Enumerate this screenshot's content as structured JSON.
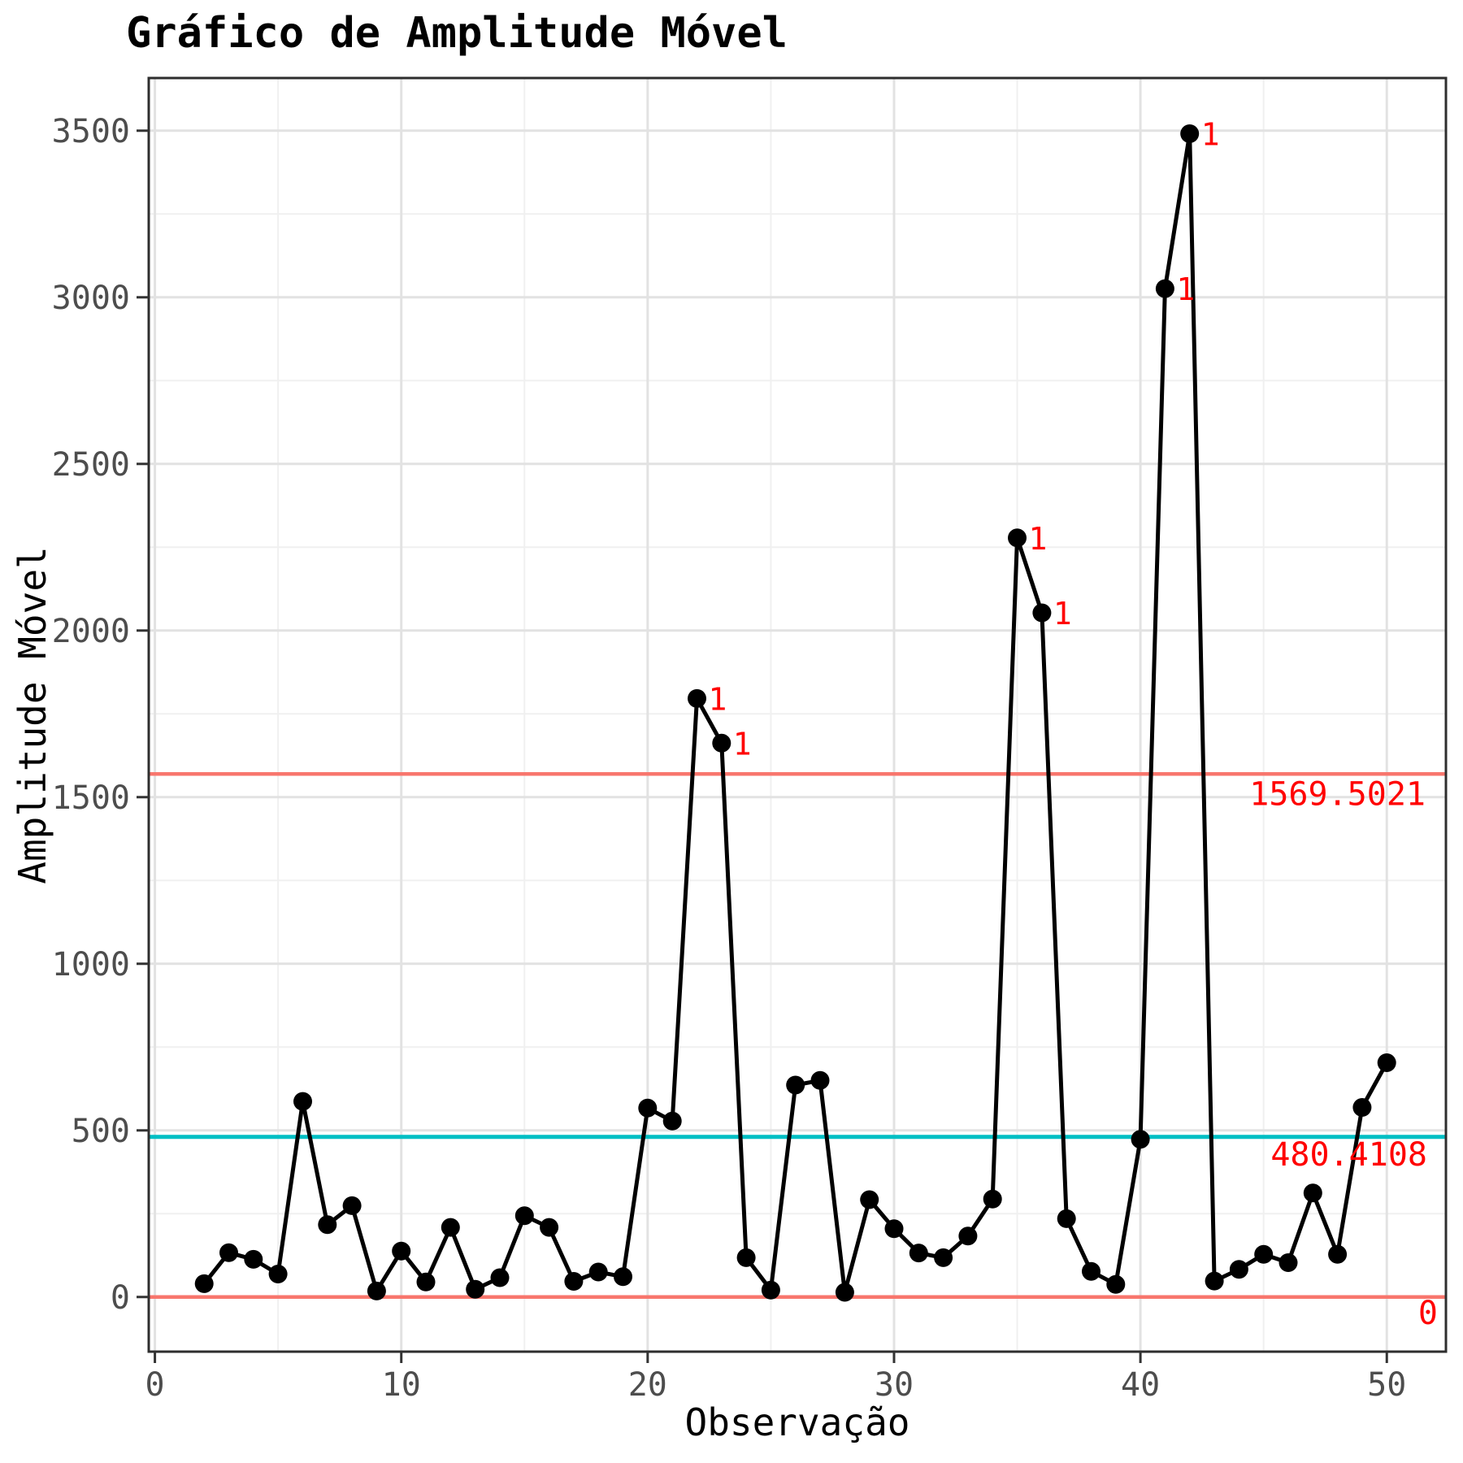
{
  "chart_data": {
    "type": "line",
    "title": "Gráfico de Amplitude Móvel",
    "xlabel": "Observação",
    "ylabel": "Amplitude Móvel",
    "x": [
      2,
      3,
      4,
      5,
      6,
      7,
      8,
      9,
      10,
      11,
      12,
      13,
      14,
      15,
      16,
      17,
      18,
      19,
      20,
      21,
      22,
      23,
      24,
      25,
      26,
      27,
      28,
      29,
      30,
      31,
      32,
      33,
      34,
      35,
      36,
      37,
      38,
      39,
      40,
      41,
      42,
      43,
      44,
      45,
      46,
      47,
      48,
      49,
      50
    ],
    "values": [
      40,
      133,
      113,
      69,
      587,
      217,
      274,
      18,
      138,
      45,
      209,
      23,
      58,
      244,
      209,
      47,
      75,
      61,
      567,
      528,
      1796,
      1662,
      118,
      21,
      636,
      650,
      14,
      292,
      205,
      132,
      118,
      183,
      294,
      2278,
      2053,
      235,
      77,
      38,
      473,
      3026,
      3491,
      48,
      83,
      128,
      103,
      312,
      128,
      569,
      703
    ],
    "signals": [
      22,
      23,
      35,
      36,
      41,
      42
    ],
    "signal_label": "1",
    "lines": {
      "ucl": {
        "value": 1569.5021,
        "label": "1569.5021"
      },
      "cl": {
        "value": 480.4108,
        "label": "480.4108"
      },
      "lcl": {
        "value": 0,
        "label": "0"
      }
    },
    "xticks": [
      0,
      10,
      20,
      30,
      40,
      50
    ],
    "yticks": [
      0,
      500,
      1000,
      1500,
      2000,
      2500,
      3000,
      3500
    ],
    "xlim": [
      -0.25,
      52.4
    ],
    "ylim": [
      -164,
      3658
    ],
    "grid": true,
    "legend": false,
    "colors": {
      "series": "#000000",
      "limit_line": "#F8766D",
      "center_line": "#00BFC4",
      "annotation": "#FF0000",
      "grid_major": "#E2E2E2",
      "grid_minor": "#F0F0F0",
      "panel_border": "#2e2e2e",
      "tick_text": "#4d4d4d"
    }
  }
}
